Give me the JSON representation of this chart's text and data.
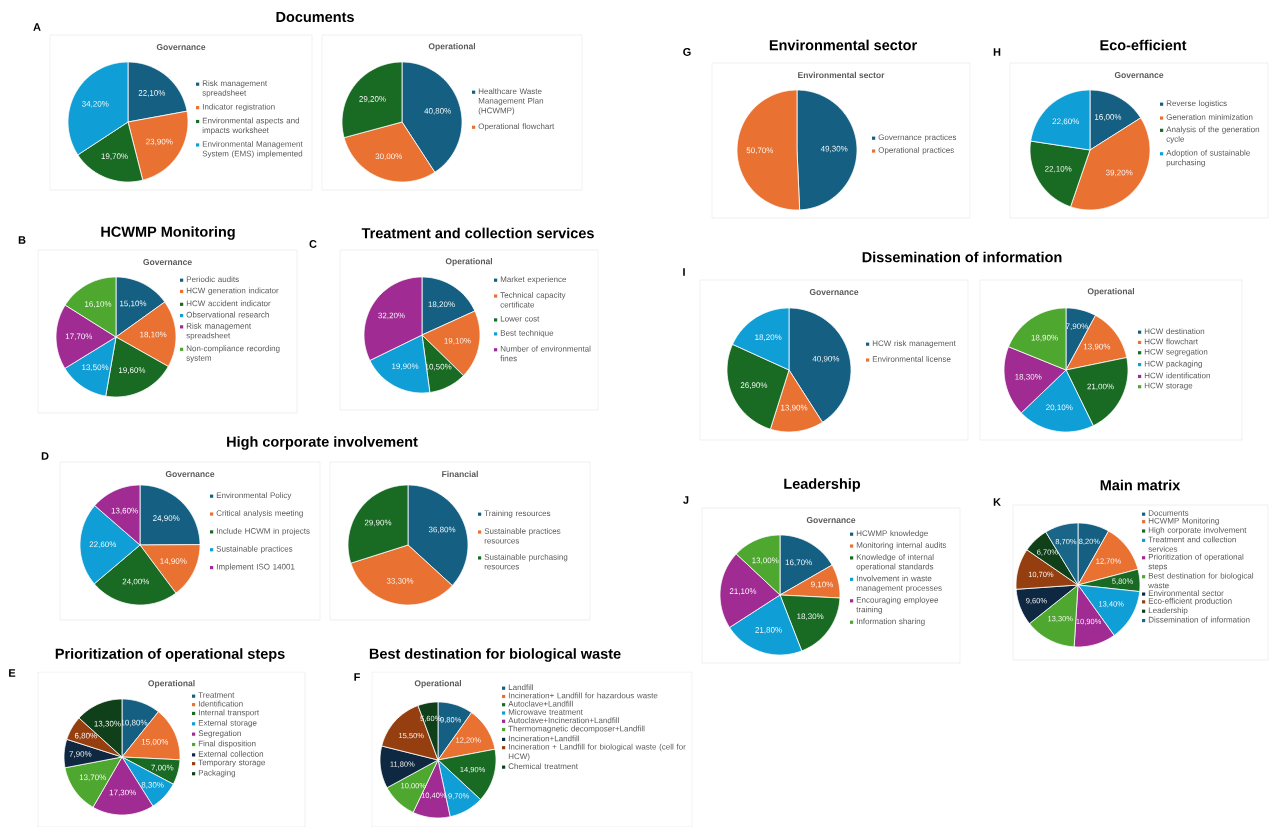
{
  "chart_data": [
    {
      "type": "pie",
      "title": "Documents",
      "subtitle": "Governance",
      "annotations": [
        "A"
      ],
      "legend": "right",
      "categories": [
        "Risk management spreadsheet",
        "Indicator registration",
        "Environmental aspects and impacts worksheet",
        "Environmental Management System (EMS) implemented"
      ],
      "values": [
        22.1,
        23.9,
        19.7,
        34.2
      ],
      "value_labels": [
        "22,10%",
        "23,90%",
        "19,70%",
        "34,20%"
      ],
      "colors": [
        "#156082",
        "#e97132",
        "#196b24",
        "#0f9ed5"
      ]
    },
    {
      "type": "pie",
      "subtitle": "Operational",
      "legend": "right",
      "categories": [
        "Healthcare Waste Management Plan (HCWMP)",
        "Operational flowchart",
        null
      ],
      "values": [
        40.8,
        30.0,
        29.2
      ],
      "value_labels": [
        "40,80%",
        "30,00%",
        "29,20%"
      ],
      "colors": [
        "#156082",
        "#e97132",
        "#196b24"
      ]
    },
    {
      "type": "pie",
      "title": "HCWMP Monitoring",
      "subtitle": "Governance",
      "annotations": [
        "B"
      ],
      "legend": "right",
      "categories": [
        "Periodic audits",
        "HCW generation indicator",
        "HCW accident indicator",
        "Observational research",
        "Risk management spreadsheet",
        "Non-compliance recording system"
      ],
      "values": [
        15.1,
        18.1,
        19.6,
        13.5,
        17.7,
        16.1
      ],
      "value_labels": [
        "15,10%",
        "18,10%",
        "19,60%",
        "13,50%",
        "17,70%",
        "16,10%"
      ],
      "colors": [
        "#156082",
        "#e97132",
        "#196b24",
        "#0f9ed5",
        "#a02b93",
        "#4ea72e"
      ]
    },
    {
      "type": "pie",
      "title": "Treatment and collection services",
      "subtitle": "Operational",
      "annotations": [
        "C"
      ],
      "legend": "right",
      "categories": [
        "Market experience",
        "Technical capacity certificate",
        "Lower cost",
        "Best technique",
        "Number of environmental fines"
      ],
      "values": [
        18.2,
        19.1,
        10.5,
        19.9,
        32.2
      ],
      "value_labels": [
        "18,20%",
        "19,10%",
        "10,50%",
        "19,90%",
        "32,20%"
      ],
      "colors": [
        "#156082",
        "#e97132",
        "#196b24",
        "#0f9ed5",
        "#a02b93"
      ]
    },
    {
      "type": "pie",
      "title": "High corporate involvement",
      "subtitle": "Governance",
      "annotations": [
        "D"
      ],
      "legend": "right",
      "categories": [
        "Environmental Policy",
        "Critical analysis meeting",
        "Include HCWM in projects",
        "Sustainable practices",
        "Implement ISO 14001"
      ],
      "values": [
        24.9,
        14.9,
        24.0,
        22.6,
        13.6
      ],
      "value_labels": [
        "24,90%",
        "14,90%",
        "24,00%",
        "22,60%",
        "13,60%"
      ],
      "colors": [
        "#156082",
        "#e97132",
        "#196b24",
        "#0f9ed5",
        "#a02b93"
      ]
    },
    {
      "type": "pie",
      "subtitle": "Financial",
      "legend": "right",
      "categories": [
        "Training resources",
        "Sustainable practices resources",
        "Sustainable purchasing resources"
      ],
      "values": [
        36.8,
        33.3,
        29.9
      ],
      "value_labels": [
        "36,80%",
        "33,30%",
        "29,90%"
      ],
      "colors": [
        "#156082",
        "#e97132",
        "#196b24"
      ]
    },
    {
      "type": "pie",
      "title": "Prioritization of operational steps",
      "subtitle": "Operational",
      "annotations": [
        "E"
      ],
      "legend": "right",
      "categories": [
        "Treatment",
        "Identification",
        "Internal transport",
        "External storage",
        "Segregation",
        "Final disposition",
        "External collection",
        "Temporary storage",
        "Packaging"
      ],
      "values": [
        10.8,
        15.0,
        7.0,
        8.3,
        17.3,
        13.7,
        7.9,
        6.8,
        13.3
      ],
      "value_labels": [
        "10,80%",
        "15,00%",
        "7,00%",
        "8,30%",
        "17,30%",
        "13,70%",
        "7,90%",
        "6,80%",
        "13,30%"
      ],
      "colors": [
        "#156082",
        "#e97132",
        "#196b24",
        "#0f9ed5",
        "#a02b93",
        "#4ea72e",
        "#0e2841",
        "#953f11",
        "#10401a"
      ]
    },
    {
      "type": "pie",
      "title": "Best destination for biological waste",
      "subtitle": "Operational",
      "annotations": [
        "F"
      ],
      "legend": "right",
      "categories": [
        "Landfill",
        "Incineration+ Landfill for hazardous waste",
        "Autoclave+Landfill",
        "Microwave treatment",
        "Autoclave+Incineration+Landfill",
        "Thermomagnetic decomposer+Landfill",
        "Incineration+Landfill",
        "Incineration + Landfill for biological waste (cell for HCW)",
        "Chemical treatment"
      ],
      "values": [
        9.8,
        12.2,
        14.9,
        9.7,
        10.4,
        10.0,
        11.8,
        15.5,
        5.6
      ],
      "value_labels": [
        "9,80%",
        "12,20%",
        "14,90%",
        "9,70%",
        "10,40%",
        "10,00%",
        "11,80%",
        "15,50%",
        "5,60%"
      ],
      "colors": [
        "#156082",
        "#e97132",
        "#196b24",
        "#0f9ed5",
        "#a02b93",
        "#4ea72e",
        "#0e2841",
        "#953f11",
        "#10401a"
      ]
    },
    {
      "type": "pie",
      "title": "Environmental sector",
      "subtitle": "Environmental sector",
      "annotations": [
        "G"
      ],
      "legend": "right",
      "categories": [
        "Governance practices",
        "Operational practices"
      ],
      "values": [
        49.3,
        50.7
      ],
      "value_labels": [
        "49,30%",
        "50,70%"
      ],
      "colors": [
        "#156082",
        "#e97132"
      ]
    },
    {
      "type": "pie",
      "title": "Eco-efficient",
      "subtitle": "Governance",
      "annotations": [
        "H"
      ],
      "legend": "right",
      "categories": [
        "Reverse logistics",
        "Generation minimization",
        "Analysis of the generation cycle",
        "Adoption of sustainable purchasing"
      ],
      "values": [
        16.0,
        39.2,
        22.1,
        22.6
      ],
      "value_labels": [
        "16,00%",
        "39,20%",
        "22,10%",
        "22,60%"
      ],
      "colors": [
        "#156082",
        "#e97132",
        "#196b24",
        "#0f9ed5"
      ]
    },
    {
      "type": "pie",
      "title": "Dissemination of information",
      "subtitle": "Governance",
      "annotations": [
        "I"
      ],
      "legend": "right",
      "categories": [
        "HCW risk management",
        "Environmental license",
        null,
        null
      ],
      "values": [
        40.9,
        13.9,
        26.9,
        18.2
      ],
      "value_labels": [
        "40,90%",
        "13,90%",
        "26,90%",
        "18,20%"
      ],
      "colors": [
        "#156082",
        "#e97132",
        "#196b24",
        "#0f9ed5"
      ]
    },
    {
      "type": "pie",
      "subtitle": "Operational",
      "legend": "right",
      "categories": [
        "HCW destination",
        "HCW flowchart",
        "HCW segregation",
        "HCW packaging",
        "HCW identification",
        "HCW storage"
      ],
      "values": [
        7.9,
        13.9,
        21.0,
        20.1,
        18.3,
        18.9
      ],
      "value_labels": [
        "7,90%",
        "13,90%",
        "21,00%",
        "20,10%",
        "18,30%",
        "18,90%"
      ],
      "colors": [
        "#156082",
        "#e97132",
        "#196b24",
        "#0f9ed5",
        "#a02b93",
        "#4ea72e"
      ]
    },
    {
      "type": "pie",
      "title": "Leadership",
      "subtitle": "Governance",
      "annotations": [
        "J"
      ],
      "legend": "right",
      "categories": [
        "HCWMP knowledge",
        "Monitoring internal audits",
        "Knowledge of internal operational standards",
        "Involvement in waste management processes",
        "Encouraging employee training",
        "Information sharing"
      ],
      "values": [
        16.7,
        9.1,
        18.3,
        21.8,
        21.1,
        13.0
      ],
      "value_labels": [
        "16,70%",
        "9,10%",
        "18,30%",
        "21,80%",
        "21,10%",
        "13,00%"
      ],
      "colors": [
        "#156082",
        "#e97132",
        "#196b24",
        "#0f9ed5",
        "#a02b93",
        "#4ea72e"
      ]
    },
    {
      "type": "pie",
      "title": "Main matrix",
      "annotations": [
        "K"
      ],
      "legend": "right",
      "categories": [
        "Documents",
        "HCWMP Monitoring",
        "High corporate involvement",
        "Treatment and collection services",
        "Prioritization of operational steps",
        "Best destination for biological waste",
        "Environmental sector",
        "Eco-efficient production",
        "Leadership",
        "Dissemination of information"
      ],
      "values": [
        8.2,
        12.7,
        5.8,
        13.4,
        10.9,
        13.3,
        9.6,
        10.7,
        6.7,
        8.7
      ],
      "value_labels": [
        "8,20%",
        "12,70%",
        "5,80%",
        "13,40%",
        "10,90%",
        "13,30%",
        "9,60%",
        "10,70%",
        "6,70%",
        "8,70%"
      ],
      "colors": [
        "#156082",
        "#e97132",
        "#196b24",
        "#0f9ed5",
        "#a02b93",
        "#4ea72e",
        "#0e2841",
        "#953f11",
        "#10401a",
        "#1a6688"
      ]
    }
  ]
}
